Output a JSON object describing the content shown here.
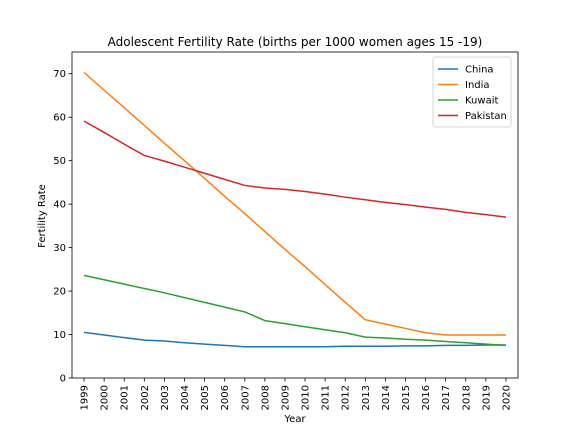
{
  "chart_data": {
    "type": "line",
    "title": "Adolescent Fertility Rate (births per 1000 women ages 15 -19)",
    "xlabel": "Year",
    "ylabel": "Fertility Rate",
    "xlim": [
      1998.4,
      2020.6
    ],
    "ylim": [
      0,
      75
    ],
    "xticks": [
      1999,
      2000,
      2001,
      2002,
      2003,
      2004,
      2005,
      2006,
      2007,
      2008,
      2009,
      2010,
      2011,
      2012,
      2013,
      2014,
      2015,
      2016,
      2017,
      2018,
      2019,
      2020
    ],
    "yticks": [
      0,
      10,
      20,
      30,
      40,
      50,
      60,
      70
    ],
    "grid": false,
    "legend_position": "upper right",
    "x": [
      1999,
      2000,
      2001,
      2002,
      2003,
      2004,
      2005,
      2006,
      2007,
      2008,
      2009,
      2010,
      2011,
      2012,
      2013,
      2014,
      2015,
      2016,
      2017,
      2018,
      2019,
      2020
    ],
    "series": [
      {
        "name": "China",
        "color": "#1f77b4",
        "values": [
          10.5,
          9.9,
          9.3,
          8.7,
          8.5,
          8.1,
          7.8,
          7.5,
          7.2,
          7.2,
          7.2,
          7.2,
          7.2,
          7.3,
          7.3,
          7.3,
          7.4,
          7.4,
          7.5,
          7.5,
          7.6,
          7.6
        ]
      },
      {
        "name": "India",
        "color": "#ff7f0e",
        "values": [
          70.3,
          66.2,
          62.2,
          58.1,
          54.0,
          50.0,
          45.9,
          41.8,
          37.8,
          33.7,
          29.6,
          25.6,
          21.5,
          17.4,
          13.4,
          12.4,
          11.4,
          10.4,
          9.9,
          9.9,
          9.9,
          9.9
        ]
      },
      {
        "name": "Kuwait",
        "color": "#2ca02c",
        "values": [
          23.6,
          22.6,
          21.6,
          20.6,
          19.6,
          18.5,
          17.4,
          16.3,
          15.2,
          13.2,
          12.5,
          11.8,
          11.1,
          10.4,
          9.4,
          9.2,
          8.9,
          8.7,
          8.4,
          8.1,
          7.8,
          7.5
        ]
      },
      {
        "name": "Pakistan",
        "color": "#d62728",
        "values": [
          59.1,
          56.5,
          53.8,
          51.2,
          49.9,
          48.5,
          47.1,
          45.7,
          44.3,
          43.7,
          43.4,
          42.9,
          42.3,
          41.6,
          41.0,
          40.4,
          39.9,
          39.3,
          38.8,
          38.1,
          37.6,
          37.0
        ]
      }
    ]
  }
}
